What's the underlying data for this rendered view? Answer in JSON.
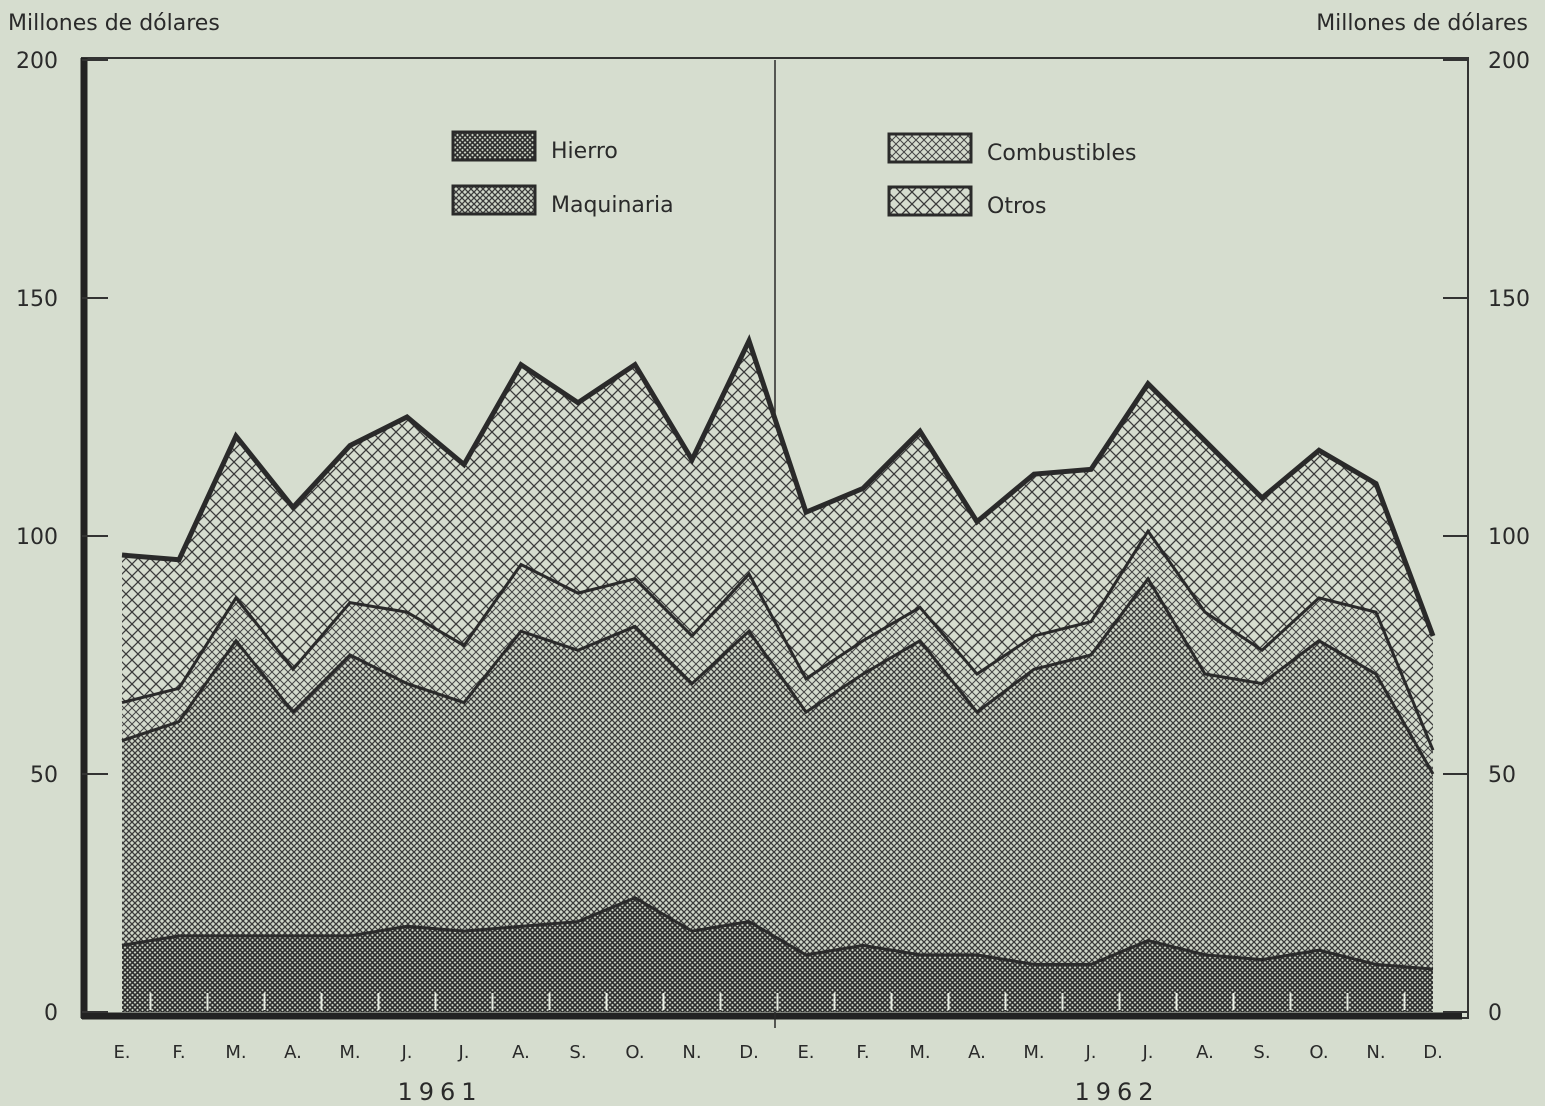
{
  "chart_data": {
    "type": "area",
    "stacked": true,
    "y_label_left": "Millones de dólares",
    "y_label_right": "Millones de dólares",
    "ylim": [
      0,
      200
    ],
    "yticks": [
      "0",
      "50",
      "100",
      "150",
      "200"
    ],
    "categories": [
      "E.",
      "F.",
      "M.",
      "A.",
      "M.",
      "J.",
      "J.",
      "A.",
      "S.",
      "O.",
      "N.",
      "D.",
      "E.",
      "F.",
      "M.",
      "A.",
      "M.",
      "J.",
      "J.",
      "A.",
      "S.",
      "O.",
      "N.",
      "D."
    ],
    "years": [
      "1961",
      "1962"
    ],
    "series": [
      {
        "name": "Hierro",
        "values": [
          14,
          16,
          16,
          16,
          16,
          18,
          17,
          18,
          19,
          24,
          17,
          19,
          12,
          14,
          12,
          12,
          10,
          10,
          15,
          12,
          11,
          13,
          10,
          9
        ]
      },
      {
        "name": "Maquinaria",
        "values": [
          43,
          45,
          62,
          47,
          59,
          51,
          48,
          62,
          57,
          57,
          52,
          61,
          51,
          57,
          66,
          51,
          62,
          65,
          76,
          59,
          58,
          65,
          61,
          41
        ]
      },
      {
        "name": "Combustibles",
        "values": [
          8,
          7,
          9,
          9,
          11,
          15,
          12,
          14,
          12,
          10,
          10,
          12,
          7,
          7,
          7,
          8,
          7,
          7,
          10,
          13,
          7,
          9,
          13,
          5
        ]
      },
      {
        "name": "Otros",
        "values": [
          31,
          27,
          34,
          34,
          33,
          41,
          38,
          42,
          40,
          45,
          37,
          49,
          35,
          32,
          37,
          32,
          34,
          32,
          31,
          36,
          32,
          31,
          27,
          24
        ]
      }
    ],
    "legend": [
      "Hierro",
      "Maquinaria",
      "Combustibles",
      "Otros"
    ],
    "legend_position": "top"
  }
}
